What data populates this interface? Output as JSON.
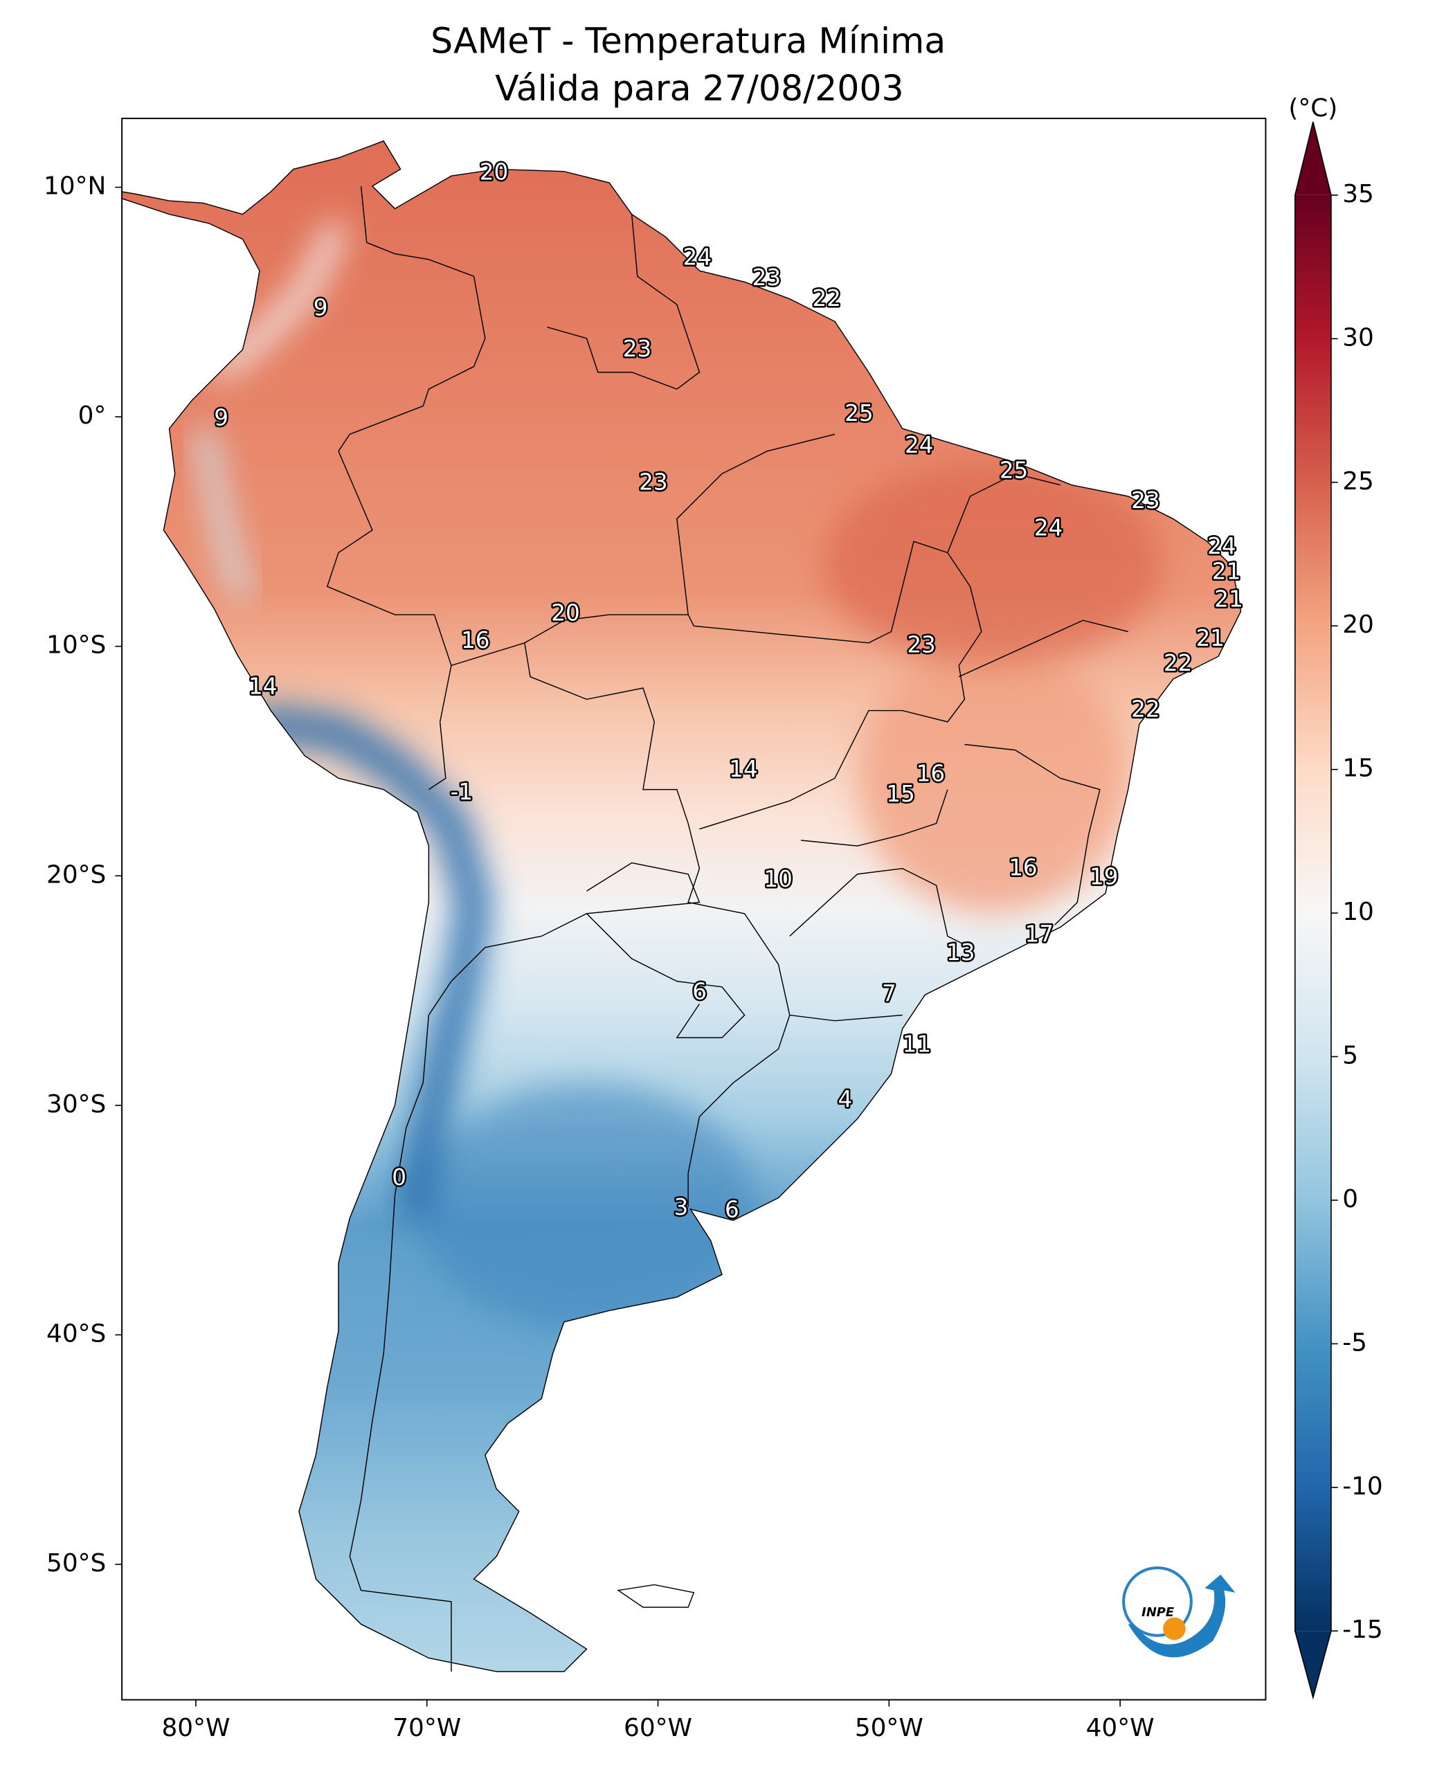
{
  "chart_data": {
    "type": "map",
    "title": "SAMeT - Temperatura Mínima",
    "subtitle": "Válida para 27/08/2003",
    "xlim": [
      -83.2,
      -33.7
    ],
    "ylim": [
      -55.9,
      13.0
    ],
    "xticks": [
      {
        "value": -80,
        "label": "80°W"
      },
      {
        "value": -70,
        "label": "70°W"
      },
      {
        "value": -60,
        "label": "60°W"
      },
      {
        "value": -50,
        "label": "50°W"
      },
      {
        "value": -40,
        "label": "40°W"
      }
    ],
    "yticks": [
      {
        "value": 10,
        "label": "10°N"
      },
      {
        "value": 0,
        "label": "0°"
      },
      {
        "value": -10,
        "label": "10°S"
      },
      {
        "value": -20,
        "label": "20°S"
      },
      {
        "value": -30,
        "label": "30°S"
      },
      {
        "value": -40,
        "label": "40°S"
      },
      {
        "value": -50,
        "label": "50°S"
      }
    ],
    "labels": [
      {
        "lon": -67.1,
        "lat": 10.6,
        "value": 20
      },
      {
        "lon": -74.6,
        "lat": 4.7,
        "value": 9
      },
      {
        "lon": -58.3,
        "lat": 6.9,
        "value": 24
      },
      {
        "lon": -55.3,
        "lat": 6.0,
        "value": 23
      },
      {
        "lon": -52.7,
        "lat": 5.1,
        "value": 22
      },
      {
        "lon": -60.9,
        "lat": 2.9,
        "value": 23
      },
      {
        "lon": -78.9,
        "lat": -0.1,
        "value": 9
      },
      {
        "lon": -51.3,
        "lat": 0.1,
        "value": 25
      },
      {
        "lon": -48.7,
        "lat": -1.3,
        "value": 24
      },
      {
        "lon": -44.6,
        "lat": -2.4,
        "value": 25
      },
      {
        "lon": -60.2,
        "lat": -2.9,
        "value": 23
      },
      {
        "lon": -38.9,
        "lat": -3.7,
        "value": 23
      },
      {
        "lon": -43.1,
        "lat": -4.9,
        "value": 24
      },
      {
        "lon": -35.6,
        "lat": -5.7,
        "value": 24
      },
      {
        "lon": -35.4,
        "lat": -6.8,
        "value": 21
      },
      {
        "lon": -35.3,
        "lat": -8.0,
        "value": 21
      },
      {
        "lon": -64.0,
        "lat": -8.6,
        "value": 20
      },
      {
        "lon": -36.1,
        "lat": -9.7,
        "value": 21
      },
      {
        "lon": -67.9,
        "lat": -9.8,
        "value": 16
      },
      {
        "lon": -48.6,
        "lat": -10.0,
        "value": 23
      },
      {
        "lon": -37.5,
        "lat": -10.8,
        "value": 22
      },
      {
        "lon": -77.1,
        "lat": -11.8,
        "value": 14
      },
      {
        "lon": -38.9,
        "lat": -12.8,
        "value": 22
      },
      {
        "lon": -56.3,
        "lat": -15.4,
        "value": 14
      },
      {
        "lon": -48.2,
        "lat": -15.6,
        "value": 16
      },
      {
        "lon": -49.5,
        "lat": -16.5,
        "value": 15
      },
      {
        "lon": -68.5,
        "lat": -16.4,
        "value": -1
      },
      {
        "lon": -54.8,
        "lat": -20.2,
        "value": 10
      },
      {
        "lon": -44.2,
        "lat": -19.7,
        "value": 16
      },
      {
        "lon": -40.7,
        "lat": -20.1,
        "value": 19
      },
      {
        "lon": -43.5,
        "lat": -22.6,
        "value": 17
      },
      {
        "lon": -46.9,
        "lat": -23.4,
        "value": 13
      },
      {
        "lon": -58.2,
        "lat": -25.1,
        "value": 6
      },
      {
        "lon": -50.0,
        "lat": -25.2,
        "value": 7
      },
      {
        "lon": -48.8,
        "lat": -27.4,
        "value": 11
      },
      {
        "lon": -51.9,
        "lat": -29.8,
        "value": 4
      },
      {
        "lon": -71.2,
        "lat": -33.2,
        "value": 0
      },
      {
        "lon": -59.0,
        "lat": -34.5,
        "value": 3
      },
      {
        "lon": -56.8,
        "lat": -34.6,
        "value": 6
      }
    ],
    "colorbar": {
      "label": "(°C)",
      "lim": [
        -15,
        35
      ],
      "ticks": [
        35,
        30,
        25,
        20,
        15,
        10,
        5,
        0,
        -5,
        -10,
        -15
      ],
      "colors": [
        "#053061",
        "#2166ac",
        "#4393c3",
        "#92c5de",
        "#d1e5f0",
        "#f7f7f7",
        "#fddbc7",
        "#f4a582",
        "#d6604d",
        "#b2182b",
        "#67001f"
      ],
      "extend": "both"
    },
    "logo": "INPE"
  }
}
